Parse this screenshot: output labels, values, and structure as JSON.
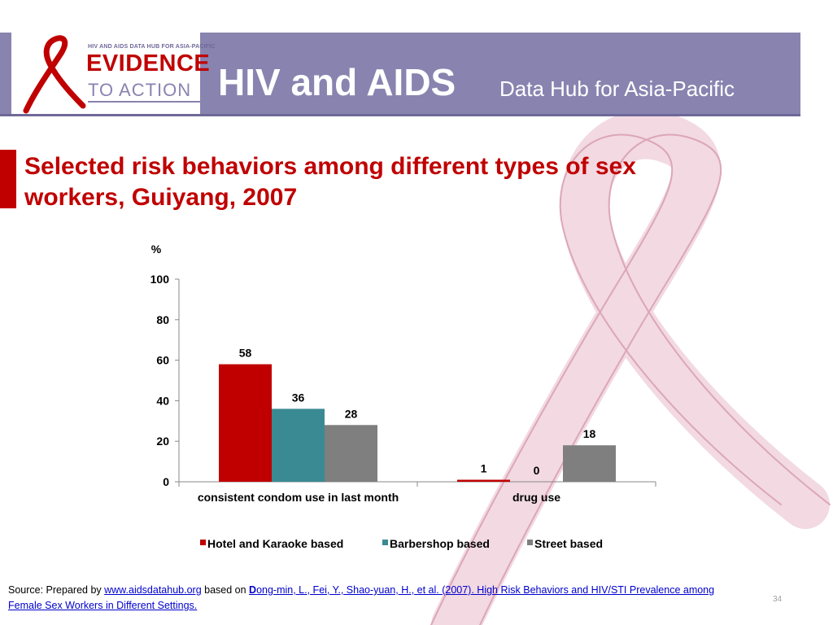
{
  "header": {
    "logo_tagline": "HIV AND AIDS DATA HUB FOR ASIA-PACIFIC",
    "logo_line1": "EVIDENCE",
    "logo_line2": "TO ACTION",
    "title": "HIV and AIDS",
    "subtitle": "Data Hub for Asia-Pacific"
  },
  "slide": {
    "title": "Selected risk behaviors among different types of sex workers, Guiyang, 2007"
  },
  "chart_data": {
    "type": "bar",
    "title": "",
    "ylabel": "%",
    "xlabel": "",
    "ylim": [
      0,
      100
    ],
    "yticks": [
      "0",
      "20",
      "40",
      "60",
      "80",
      "100"
    ],
    "categories": [
      "consistent condom use in last month",
      "drug use"
    ],
    "series": [
      {
        "name": "Hotel and Karaoke based",
        "color": "#c00000",
        "values": [
          58,
          1
        ],
        "labels": [
          "58",
          "1"
        ]
      },
      {
        "name": "Barbershop based",
        "color": "#3a8a94",
        "values": [
          36,
          0
        ],
        "labels": [
          "36",
          "0"
        ]
      },
      {
        "name": "Street based",
        "color": "#7f7f7f",
        "values": [
          28,
          18
        ],
        "labels": [
          "28",
          "18"
        ]
      }
    ],
    "grid": false,
    "legend": "bottom"
  },
  "footer": {
    "source_prefix": "Source: Prepared by ",
    "source_link": "www.aidsdatahub.org",
    "source_mid": "  based on ",
    "citation_first": "D",
    "citation_rest": "ong-min, L., Fei, Y., Shao-yuan, H., et al. (2007). High Risk Behaviors and HIV/STI Prevalence among Female Sex Workers in Different Settings.",
    "page_number": "34"
  },
  "colors": {
    "header_bg": "#8983b0",
    "brand_red": "#c00000",
    "ribbon_pink": "#f2d9e2"
  }
}
